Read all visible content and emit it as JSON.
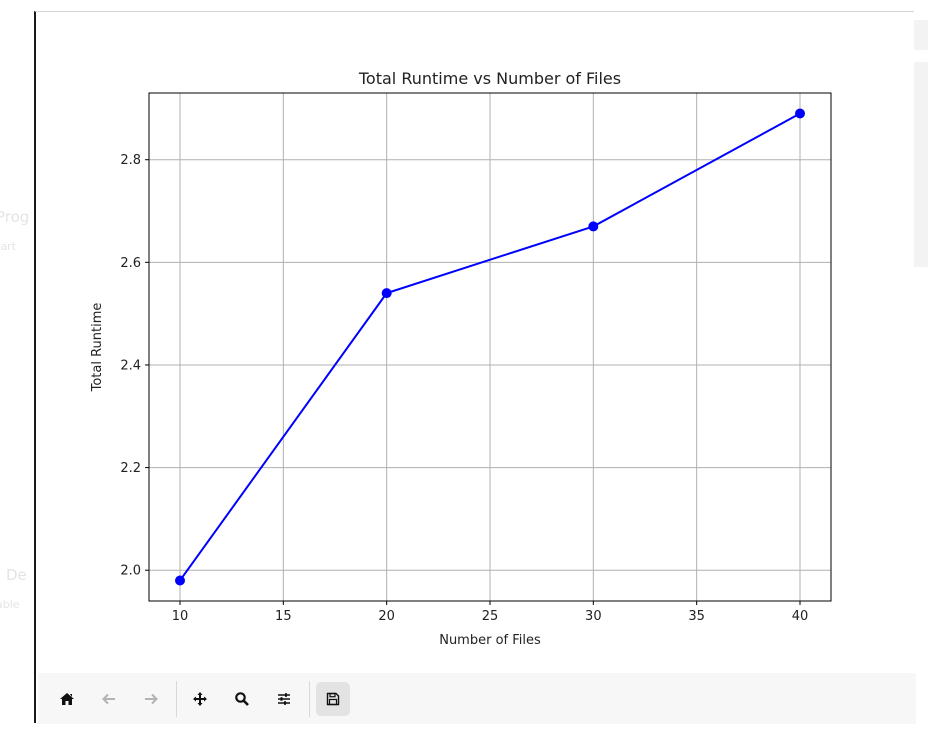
{
  "window": {
    "toolbar": [
      {
        "name": "home",
        "icon": "home-icon",
        "enabled": true
      },
      {
        "name": "back",
        "icon": "arrow-left-icon",
        "enabled": false
      },
      {
        "name": "forward",
        "icon": "arrow-right-icon",
        "enabled": false
      },
      {
        "name": "pan",
        "icon": "move-icon",
        "enabled": true
      },
      {
        "name": "zoom",
        "icon": "magnifier-icon",
        "enabled": true
      },
      {
        "name": "configure-subplots",
        "icon": "sliders-icon",
        "enabled": true
      },
      {
        "name": "save",
        "icon": "save-icon",
        "enabled": true
      }
    ]
  },
  "chart_data": {
    "type": "line",
    "title": "Total Runtime vs Number of Files",
    "xlabel": "Number of Files",
    "ylabel": "Total Runtime",
    "x": [
      10,
      20,
      30,
      40
    ],
    "y": [
      1.98,
      2.54,
      2.67,
      2.89
    ],
    "xlim": [
      8.5,
      41.5
    ],
    "ylim": [
      1.94,
      2.93
    ],
    "xticks": [
      10,
      15,
      20,
      25,
      30,
      35,
      40
    ],
    "yticks": [
      2.0,
      2.2,
      2.4,
      2.6,
      2.8
    ],
    "ytick_labels": [
      "2.0",
      "2.2",
      "2.4",
      "2.6",
      "2.8"
    ],
    "grid": true,
    "marker": "circle",
    "color": "#0000ff"
  }
}
